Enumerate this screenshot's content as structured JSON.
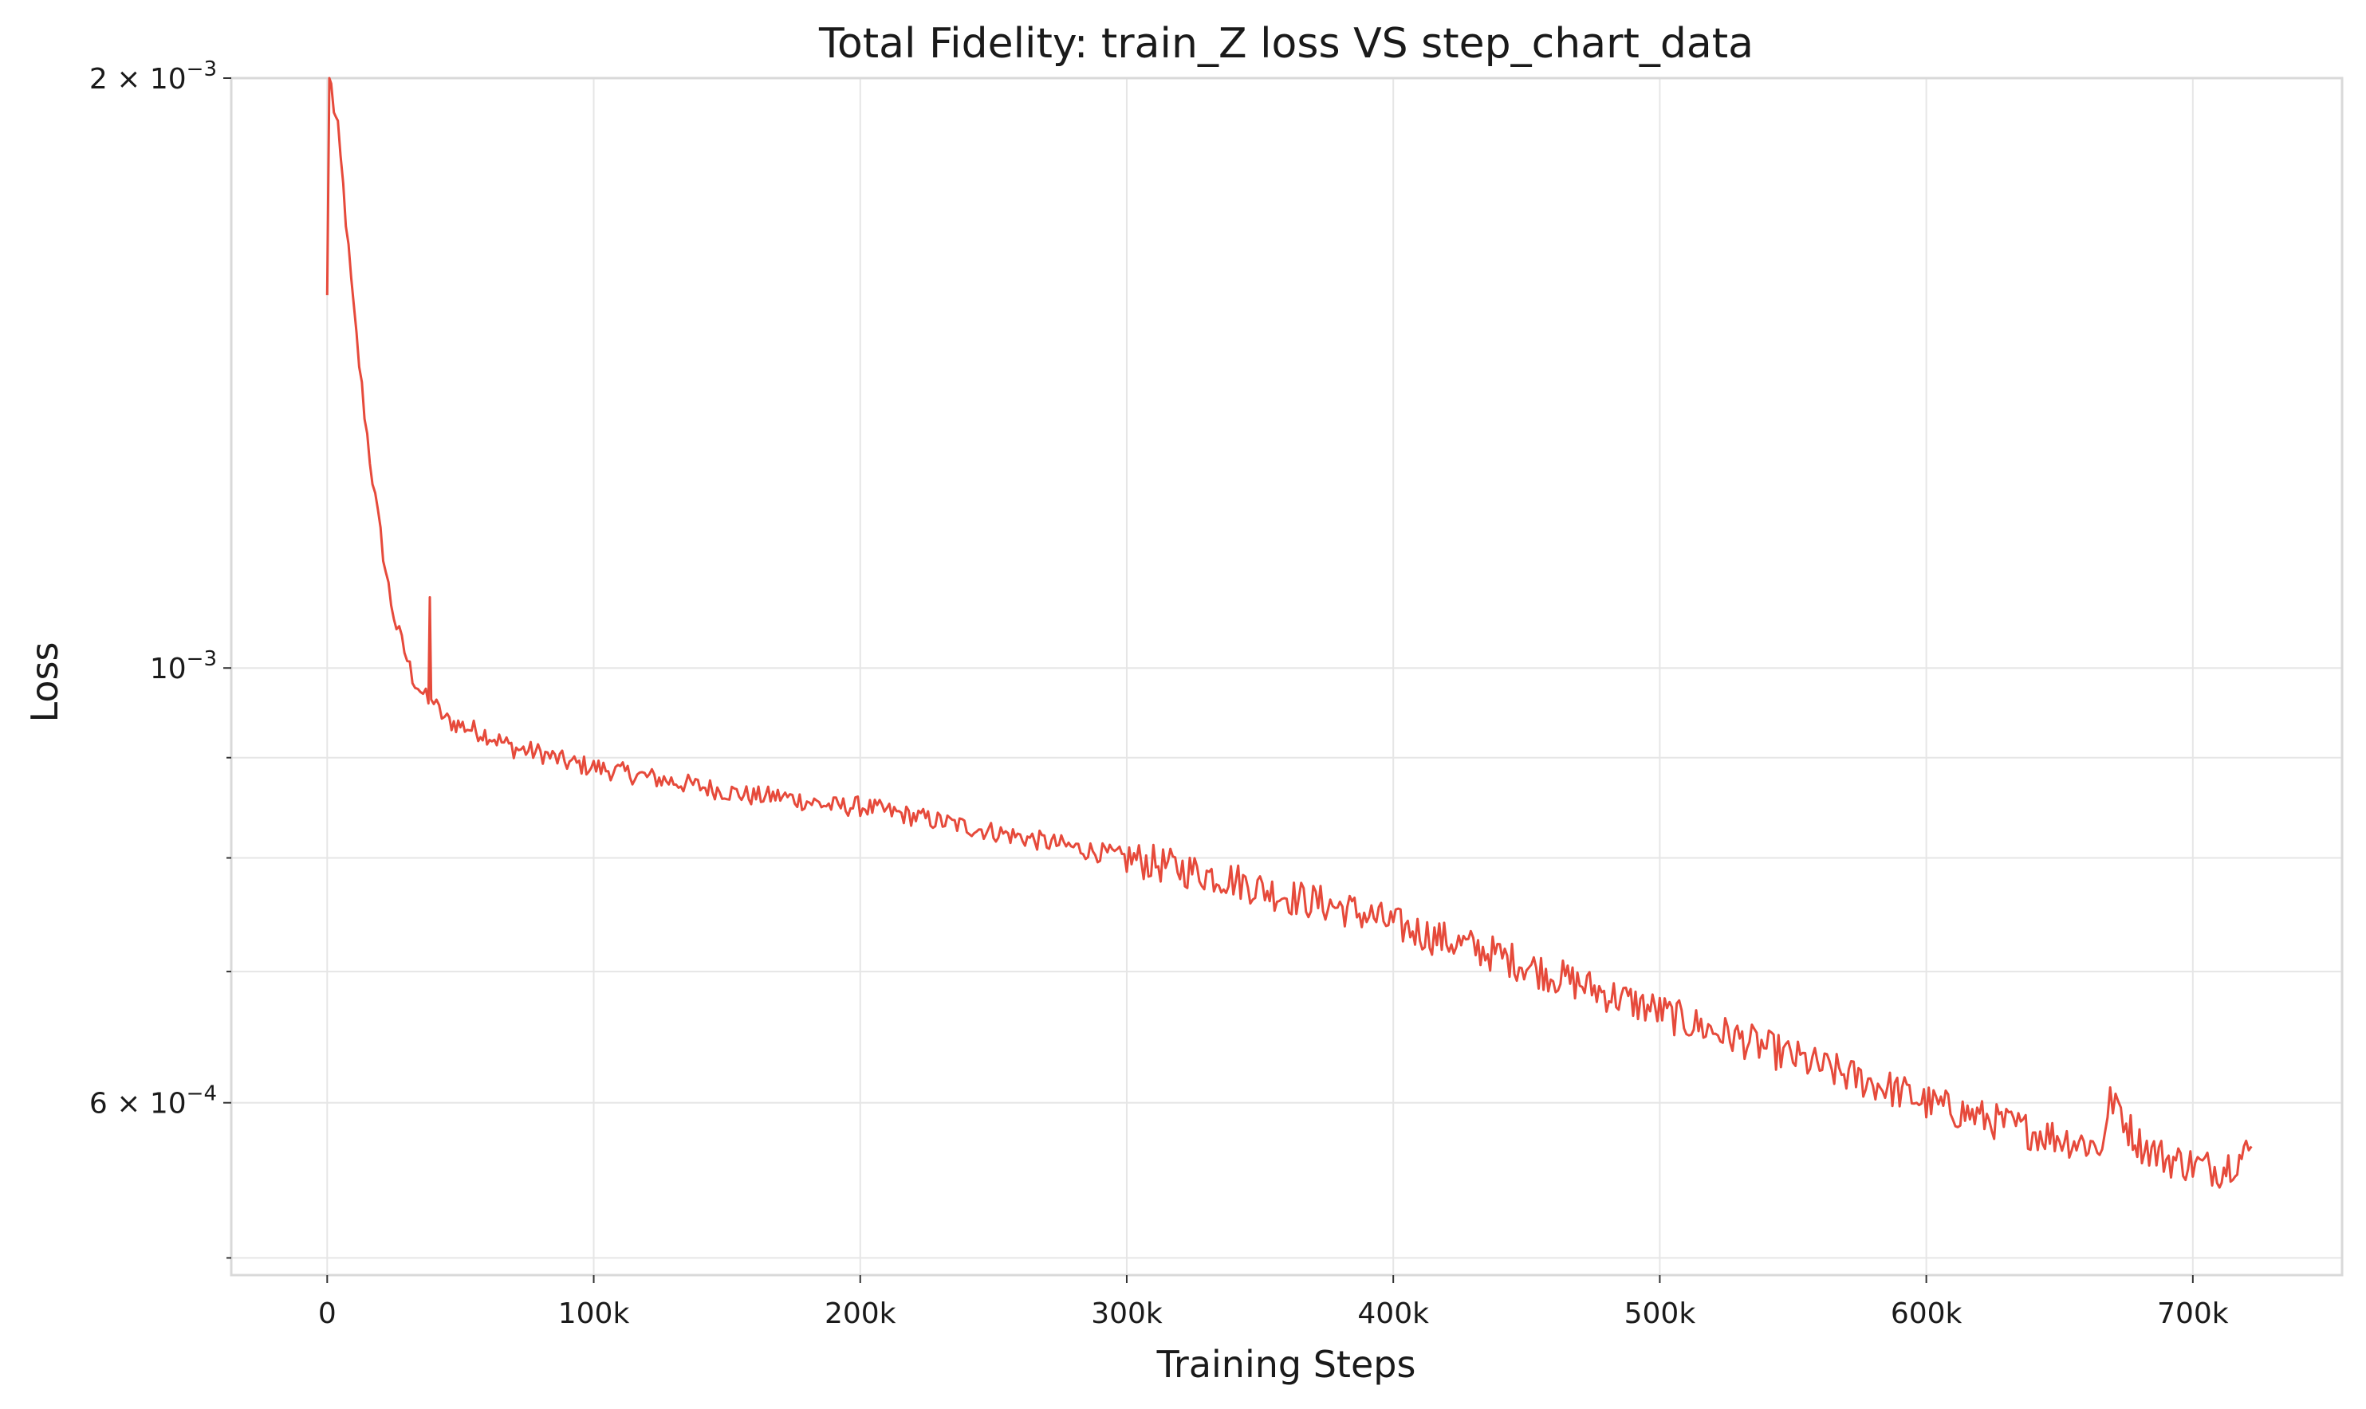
{
  "chart_data": {
    "type": "line",
    "title": "Total Fidelity: train_Z loss VS step_chart_data",
    "xlabel": "Training Steps",
    "ylabel": "Loss",
    "x_scale": "linear",
    "y_scale": "log",
    "xlim": [
      -36000,
      756000
    ],
    "ylim": [
      0.00049,
      0.002
    ],
    "grid": true,
    "legend": "none",
    "x_ticks": [
      {
        "value": 0,
        "label": "0"
      },
      {
        "value": 100000,
        "label": "100k"
      },
      {
        "value": 200000,
        "label": "200k"
      },
      {
        "value": 300000,
        "label": "300k"
      },
      {
        "value": 400000,
        "label": "400k"
      },
      {
        "value": 500000,
        "label": "500k"
      },
      {
        "value": 600000,
        "label": "600k"
      },
      {
        "value": 700000,
        "label": "700k"
      }
    ],
    "y_ticks_major": [
      {
        "value": 0.002,
        "base": "2 × 10",
        "exp": "−3"
      },
      {
        "value": 0.001,
        "base": "10",
        "exp": "−3"
      },
      {
        "value": 0.0006,
        "base": "6 × 10",
        "exp": "−4"
      }
    ],
    "y_ticks_minor": [
      0.0009,
      0.0008,
      0.0007,
      0.0005
    ],
    "series": [
      {
        "color": "#e64a3b",
        "x": [
          0,
          800,
          1500,
          2500,
          4000,
          6000,
          8000,
          10000,
          12000,
          14000,
          16000,
          18000,
          20000,
          22000,
          24000,
          26000,
          28000,
          30000,
          32000,
          34000,
          36000,
          38000,
          38500,
          39000,
          40000,
          42000,
          45000,
          50000,
          55000,
          60000,
          70000,
          80000,
          90000,
          100000,
          110000,
          120000,
          130000,
          140000,
          150000,
          160000,
          170000,
          180000,
          190000,
          200000,
          210000,
          220000,
          230000,
          240000,
          250000,
          260000,
          270000,
          280000,
          290000,
          300000,
          310000,
          320000,
          330000,
          340000,
          350000,
          360000,
          370000,
          380000,
          390000,
          400000,
          410000,
          420000,
          430000,
          440000,
          450000,
          460000,
          470000,
          480000,
          490000,
          500000,
          510000,
          520000,
          530000,
          540000,
          550000,
          560000,
          570000,
          580000,
          590000,
          600000,
          610000,
          620000,
          630000,
          640000,
          650000,
          660000,
          665000,
          668000,
          669000,
          670000,
          672000,
          675000,
          680000,
          690000,
          700000,
          710000,
          715000,
          720000,
          722000
        ],
        "y": [
          0.00155,
          0.002,
          0.00198,
          0.00193,
          0.00188,
          0.00176,
          0.00163,
          0.00152,
          0.00143,
          0.00135,
          0.00128,
          0.00122,
          0.00117,
          0.00112,
          0.00108,
          0.00105,
          0.00103,
          0.00101,
          0.00099,
          0.00098,
          0.00097,
          0.00096,
          0.00108,
          0.00097,
          0.00096,
          0.00095,
          0.00094,
          0.000935,
          0.00093,
          0.000925,
          0.00091,
          0.000905,
          0.000895,
          0.00089,
          0.000885,
          0.00088,
          0.000875,
          0.00087,
          0.000865,
          0.00086,
          0.00086,
          0.000855,
          0.00085,
          0.00085,
          0.000845,
          0.00084,
          0.000835,
          0.00083,
          0.000825,
          0.00082,
          0.000815,
          0.00081,
          0.000805,
          0.0008,
          0.000795,
          0.00079,
          0.000785,
          0.00078,
          0.000772,
          0.000765,
          0.00076,
          0.000755,
          0.000748,
          0.00074,
          0.000733,
          0.000726,
          0.00072,
          0.000713,
          0.000705,
          0.000697,
          0.00069,
          0.000682,
          0.000675,
          0.000668,
          0.00066,
          0.000653,
          0.000647,
          0.00064,
          0.000633,
          0.000626,
          0.00062,
          0.000614,
          0.000608,
          0.0006,
          0.000595,
          0.00059,
          0.000585,
          0.00058,
          0.000576,
          0.000572,
          0.00057,
          0.00058,
          0.00062,
          0.00059,
          0.0006,
          0.000585,
          0.000572,
          0.000562,
          0.000558,
          0.000555,
          0.00056,
          0.000565,
          0.00057
        ]
      }
    ]
  }
}
